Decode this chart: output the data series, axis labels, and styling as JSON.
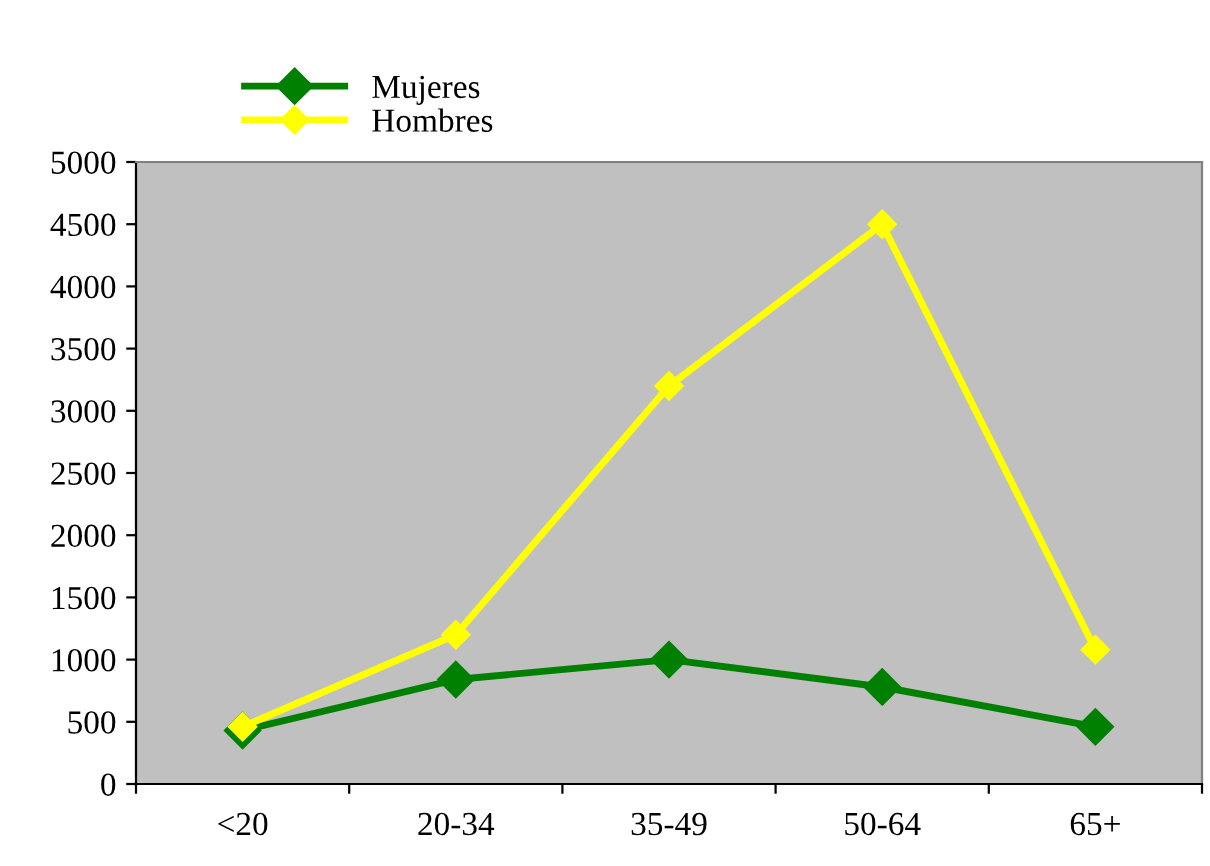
{
  "chart_data": {
    "type": "line",
    "categories": [
      "<20",
      "20-34",
      "35-49",
      "50-64",
      "65+"
    ],
    "series": [
      {
        "name": "Mujeres",
        "color": "#008000",
        "values": [
          430,
          840,
          1000,
          780,
          460
        ]
      },
      {
        "name": "Hombres",
        "color": "#ffff00",
        "values": [
          460,
          1200,
          3200,
          4500,
          1080
        ]
      }
    ],
    "ylim": [
      0,
      5000
    ],
    "yticks": [
      0,
      500,
      1000,
      1500,
      2000,
      2500,
      3000,
      3500,
      4000,
      4500,
      5000
    ],
    "grid": false,
    "legend": "top left",
    "marker": "diamond",
    "line_style": "solid"
  }
}
